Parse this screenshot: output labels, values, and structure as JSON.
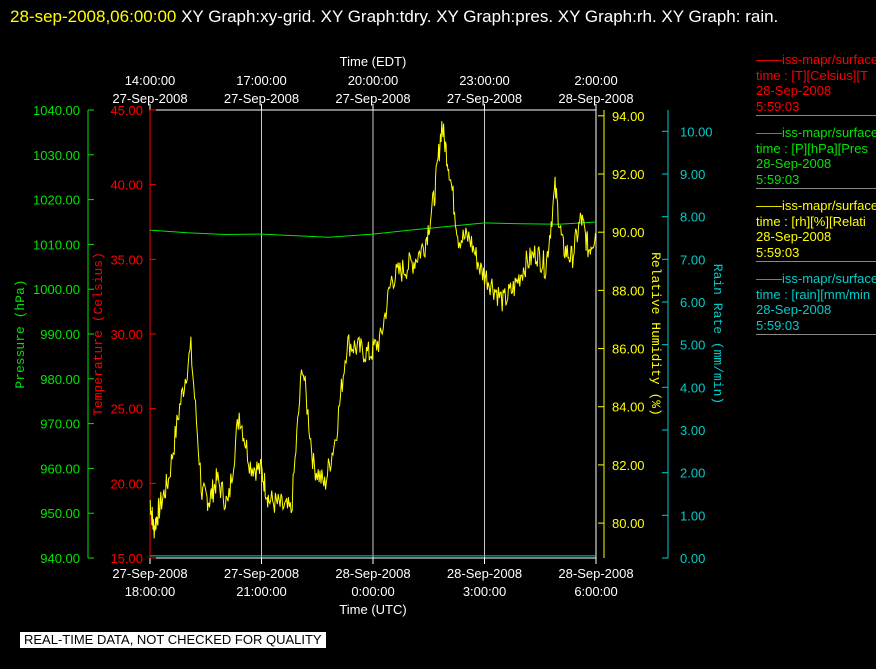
{
  "header": {
    "timestamp": "28-sep-2008,06:00:00",
    "titles": "XY Graph:xy-grid.  XY Graph:tdry.  XY Graph:pres.  XY Graph:rh.  XY Graph: rain."
  },
  "colors": {
    "temperature": "#ff0000",
    "pressure": "#00e600",
    "humidity": "#ffff00",
    "rain": "#00cccc",
    "grid": "#c8c8c8",
    "axis": "#ffffff"
  },
  "legend": [
    {
      "source": "——iss-mapr/surface",
      "field": "time : [T][Celsius][T",
      "date": "28-Sep-2008",
      "time": "5:59:03",
      "color": "#ff0000"
    },
    {
      "source": "——iss-mapr/surface",
      "field": "time : [P][hPa][Pres",
      "date": "28-Sep-2008",
      "time": "5:59:03",
      "color": "#00e600"
    },
    {
      "source": "——iss-mapr/surface",
      "field": "time : [rh][%][Relati",
      "date": "28-Sep-2008",
      "time": "5:59:03",
      "color": "#ffff00"
    },
    {
      "source": "——iss-mapr/surface",
      "field": "time : [rain][mm/min",
      "date": "28-Sep-2008",
      "time": "5:59:03",
      "color": "#00cccc"
    }
  ],
  "disclaimer": "REAL-TIME DATA, NOT CHECKED FOR QUALITY",
  "chart_data": {
    "type": "line",
    "xlabel_top": "Time (EDT)",
    "xlabel_bottom": "Time (UTC)",
    "x_range_utc_hours": [
      18,
      30
    ],
    "top_ticks": [
      {
        "time": "14:00:00",
        "date": "27-Sep-2008"
      },
      {
        "time": "17:00:00",
        "date": "27-Sep-2008"
      },
      {
        "time": "20:00:00",
        "date": "27-Sep-2008"
      },
      {
        "time": "23:00:00",
        "date": "27-Sep-2008"
      },
      {
        "time": "2:00:00",
        "date": "28-Sep-2008"
      }
    ],
    "bottom_ticks": [
      {
        "date": "27-Sep-2008",
        "time": "18:00:00"
      },
      {
        "date": "27-Sep-2008",
        "time": "21:00:00"
      },
      {
        "date": "28-Sep-2008",
        "time": "0:00:00"
      },
      {
        "date": "28-Sep-2008",
        "time": "3:00:00"
      },
      {
        "date": "28-Sep-2008",
        "time": "6:00:00"
      }
    ],
    "axes": {
      "pressure": {
        "label": "Pressure (hPa)",
        "range": [
          940,
          1040
        ],
        "ticks": [
          "1040.00",
          "1030.00",
          "1020.00",
          "1010.00",
          "1000.00",
          "990.00",
          "980.00",
          "970.00",
          "960.00",
          "950.00",
          "940.00"
        ]
      },
      "temperature": {
        "label": "Temperature (Celsius)",
        "range": [
          15,
          45
        ],
        "ticks": [
          "45.00",
          "40.00",
          "35.00",
          "30.00",
          "25.00",
          "20.00",
          "15.00"
        ]
      },
      "humidity": {
        "label": "Relative Humidity (%)",
        "range": [
          78.8,
          94.2
        ],
        "ticks": [
          "94.00",
          "92.00",
          "90.00",
          "88.00",
          "86.00",
          "84.00",
          "82.00",
          "80.00"
        ]
      },
      "rain": {
        "label": "Rain Rate (mm/min)",
        "range": [
          0,
          10.5
        ],
        "ticks": [
          "10.00",
          "9.00",
          "8.00",
          "7.00",
          "6.00",
          "5.00",
          "4.00",
          "3.00",
          "2.00",
          "1.00",
          "0.00"
        ]
      }
    },
    "series": [
      {
        "name": "Pressure",
        "axis": "pressure",
        "color": "#00e600",
        "x": [
          18.0,
          19.0,
          20.0,
          21.0,
          22.0,
          22.8,
          24.0,
          25.0,
          26.0,
          27.0,
          28.0,
          29.0,
          30.0
        ],
        "y": [
          1013.2,
          1012.6,
          1012.2,
          1012.3,
          1011.9,
          1011.6,
          1012.3,
          1013.2,
          1014.0,
          1014.8,
          1014.6,
          1014.5,
          1015.0
        ]
      },
      {
        "name": "Rain",
        "axis": "rain",
        "color": "#00cccc",
        "x": [
          18.0,
          30.0
        ],
        "y": [
          0.05,
          0.05
        ]
      },
      {
        "name": "Relative Humidity",
        "axis": "humidity",
        "color": "#ffff00",
        "x": [
          18.0,
          18.1,
          18.25,
          18.5,
          18.8,
          19.1,
          19.4,
          19.6,
          19.8,
          20.1,
          20.4,
          20.7,
          21.0,
          21.2,
          21.5,
          21.8,
          22.1,
          22.4,
          22.7,
          23.0,
          23.3,
          23.6,
          23.9,
          24.2,
          24.5,
          24.8,
          25.1,
          25.4,
          25.65,
          25.85,
          26.05,
          26.3,
          26.6,
          26.9,
          27.2,
          27.5,
          27.8,
          28.1,
          28.4,
          28.65,
          28.9,
          29.1,
          29.35,
          29.6,
          29.8,
          30.0
        ],
        "y": [
          80.8,
          79.8,
          80.5,
          81.5,
          84.0,
          86.0,
          81.0,
          80.8,
          81.5,
          80.6,
          83.8,
          82.0,
          81.8,
          80.8,
          80.6,
          80.4,
          85.5,
          82.0,
          81.3,
          83.0,
          86.2,
          86.0,
          85.8,
          86.3,
          88.4,
          88.7,
          89.0,
          89.6,
          91.2,
          93.7,
          92.2,
          89.8,
          89.8,
          88.7,
          88.2,
          87.6,
          88.1,
          88.9,
          89.3,
          88.8,
          91.5,
          89.5,
          89.1,
          90.5,
          89.4,
          90.0
        ]
      }
    ]
  }
}
